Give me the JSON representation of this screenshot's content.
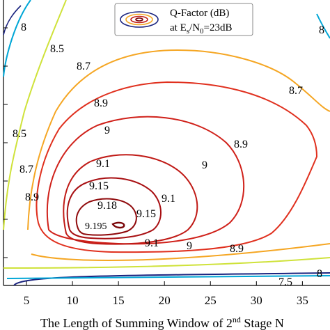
{
  "chart_data": {
    "type": "contour",
    "title": "",
    "xlabel_prefix": "The Length of Summing Window of 2",
    "xlabel_sup": "nd",
    "xlabel_suffix": " Stage  N",
    "ylabel": "",
    "x_ticks": [
      "5",
      "10",
      "15",
      "20",
      "25",
      "30",
      "35"
    ],
    "xlim": [
      2.5,
      38
    ],
    "legend": {
      "line1": "Q-Factor (dB)",
      "line2_prefix": "at E",
      "line2_sub1": "s",
      "line2_mid": "/N",
      "line2_sub2": "0",
      "line2_suffix": "=23dB",
      "position": "top-center"
    },
    "levels": [
      {
        "value": 7.5,
        "label": "7.5",
        "color": "#1a237e"
      },
      {
        "value": 8.0,
        "label": "8",
        "color": "#00a6d6"
      },
      {
        "value": 8.5,
        "label": "8.5",
        "color": "#cfe23a"
      },
      {
        "value": 8.7,
        "label": "8.7",
        "color": "#f5a623"
      },
      {
        "value": 8.9,
        "label": "8.9",
        "color": "#e0301e"
      },
      {
        "value": 9.0,
        "label": "9",
        "color": "#d0211a"
      },
      {
        "value": 9.1,
        "label": "9.1",
        "color": "#c01a16"
      },
      {
        "value": 9.15,
        "label": "9.15",
        "color": "#a80f12"
      },
      {
        "value": 9.18,
        "label": "9.18",
        "color": "#900a0c"
      },
      {
        "value": 9.195,
        "label": "9.195",
        "color": "#7a0508"
      }
    ]
  }
}
